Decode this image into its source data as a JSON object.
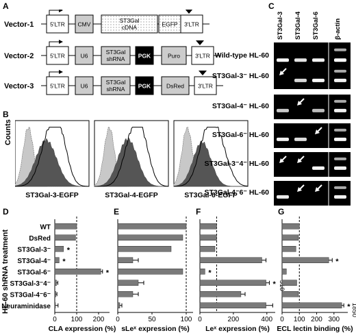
{
  "panel_letters": {
    "a": "A",
    "b": "B",
    "c": "C",
    "d": "D",
    "e": "E",
    "f": "F",
    "g": "G"
  },
  "vectors": [
    {
      "label": "Vector-1",
      "boxes": [
        "5'LTR",
        "CMV",
        "ST3Gal cDNA",
        "EGFP",
        "3'LTR"
      ]
    },
    {
      "label": "Vector-2",
      "boxes": [
        "5'LTR",
        "U6",
        "ST3Gal shRNA",
        "PGK",
        "Puro",
        "3'LTR"
      ]
    },
    {
      "label": "Vector-3",
      "boxes": [
        "5'LTR",
        "U6",
        "ST3Gal shRNA",
        "PGK",
        "DsRed",
        "3'LTR"
      ]
    }
  ],
  "histograms": {
    "ylabel": "Counts",
    "xlabels": [
      "ST3Gal-3-EGFP",
      "ST3Gal-4-EGFP",
      "ST3Gal-6-EGFP"
    ]
  },
  "gel": {
    "columns": [
      "ST3Gal-3",
      "ST3Gal-4",
      "ST3Gal-6",
      "β-actin"
    ],
    "rows": [
      {
        "name": "Wild-type HL-60"
      },
      {
        "name": "ST3Gal-3⁻ HL-60"
      },
      {
        "name": "ST3Gal-4⁻ HL-60"
      },
      {
        "name": "ST3Gal-6⁻ HL-60"
      },
      {
        "name": "ST3Gal-3⁻4⁻ HL-60"
      },
      {
        "name": "ST3Gal-4⁻6⁻ HL-60"
      }
    ]
  },
  "bar_axis_title": "HL-60 shRNA treatment",
  "chart_data": [
    {
      "type": "bar",
      "orientation": "horizontal",
      "panel": "D",
      "categories": [
        "WT",
        "DsRed",
        "ST3Gal-3⁻",
        "ST3Gal-4⁻",
        "ST3Gal-6⁻",
        "ST3Gal-3⁻4⁻",
        "ST3Gal-4⁻6⁻",
        "Neuraminidase"
      ],
      "values": [
        100,
        95,
        40,
        20,
        210,
        8,
        5,
        3
      ],
      "errors": [
        0,
        0,
        0,
        0,
        8,
        6,
        5,
        12
      ],
      "significant": [
        false,
        false,
        true,
        true,
        true,
        false,
        false,
        false
      ],
      "xlabel": "CLA expression (%)",
      "xlim": [
        0,
        250
      ],
      "xticks": [
        0,
        100,
        200
      ],
      "reference_line": 100
    },
    {
      "type": "bar",
      "orientation": "horizontal",
      "panel": "E",
      "categories": [
        "WT",
        "DsRed",
        "ST3Gal-3⁻",
        "ST3Gal-4⁻",
        "ST3Gal-6⁻",
        "ST3Gal-3⁻4⁻",
        "ST3Gal-4⁻6⁻",
        "Neuraminidase"
      ],
      "values": [
        100,
        95,
        78,
        22,
        95,
        30,
        22,
        3
      ],
      "errors": [
        0,
        0,
        0,
        8,
        0,
        8,
        8,
        3
      ],
      "xlabel": "sLeˣ expression (%)",
      "xlim": [
        0,
        110
      ],
      "xticks": [
        0,
        50,
        100
      ],
      "reference_line": 100
    },
    {
      "type": "bar",
      "orientation": "horizontal",
      "panel": "F",
      "categories": [
        "WT",
        "DsRed",
        "ST3Gal-3⁻",
        "ST3Gal-4⁻",
        "ST3Gal-6⁻",
        "ST3Gal-3⁻4⁻",
        "ST3Gal-4⁻6⁻",
        "Neuraminidase"
      ],
      "values": [
        100,
        100,
        90,
        370,
        30,
        395,
        245,
        395
      ],
      "errors": [
        0,
        0,
        0,
        25,
        0,
        20,
        25,
        40
      ],
      "significant": [
        false,
        false,
        false,
        false,
        true,
        true,
        false,
        false
      ],
      "xlabel": "Leˣ expression (%)",
      "xlim": [
        0,
        450
      ],
      "xticks": [
        0,
        200,
        400
      ],
      "reference_line": 100,
      "break_label": "510"
    },
    {
      "type": "bar",
      "orientation": "horizontal",
      "panel": "G",
      "categories": [
        "WT",
        "DsRed",
        "ST3Gal-3⁻",
        "ST3Gal-4⁻",
        "ST3Gal-6⁻",
        "ST3Gal-3⁻4⁻",
        "ST3Gal-4⁻6⁻",
        "Neuraminidase"
      ],
      "values": [
        100,
        95,
        80,
        270,
        25,
        85,
        95,
        345
      ],
      "errors": [
        0,
        0,
        0,
        20,
        0,
        0,
        0,
        12
      ],
      "significant": [
        false,
        false,
        false,
        true,
        false,
        false,
        false,
        true
      ],
      "xlabel": "ECL lectin binding (%)",
      "xlim": [
        0,
        380
      ],
      "xticks": [
        0,
        100,
        200,
        300
      ],
      "reference_line": 100,
      "break_label": "1850"
    }
  ]
}
